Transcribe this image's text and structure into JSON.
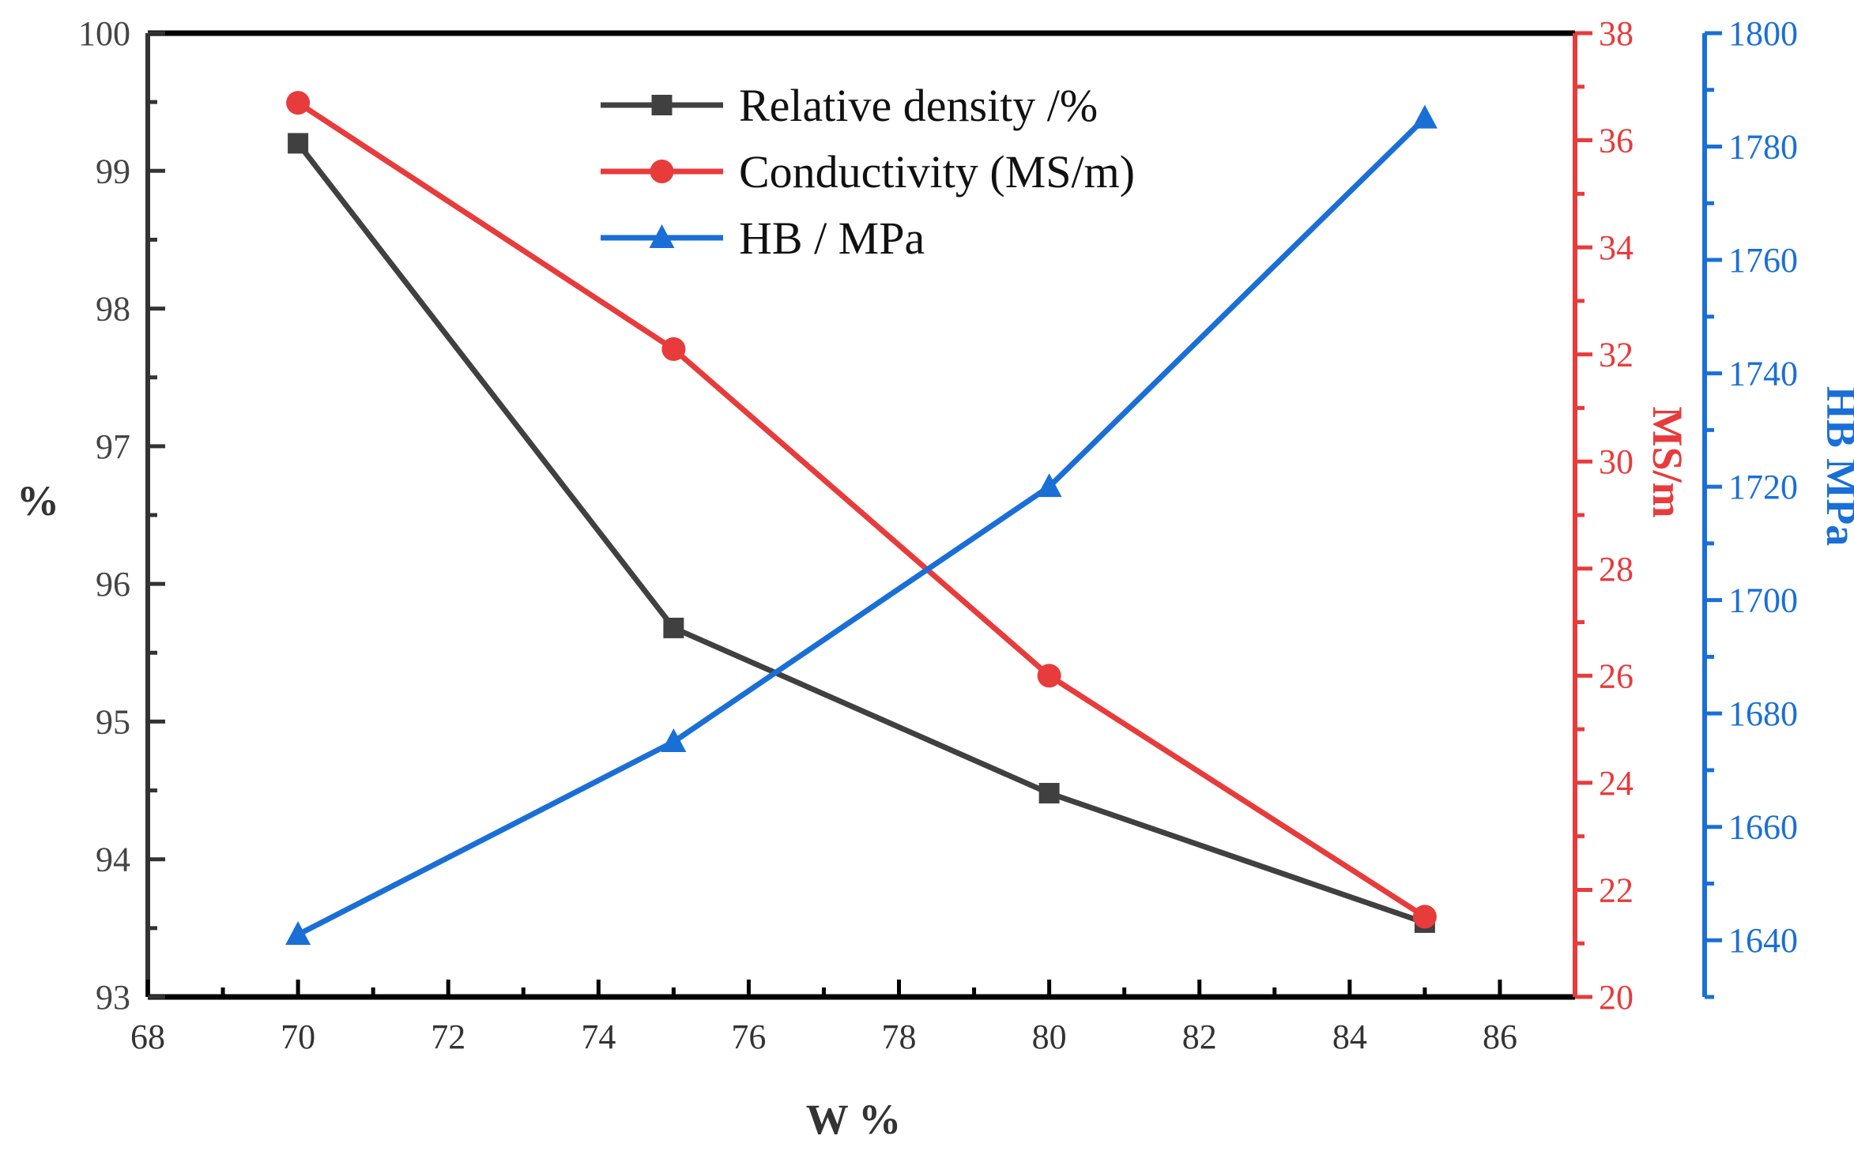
{
  "chart_data": {
    "type": "line",
    "x": [
      70,
      75,
      80,
      85
    ],
    "xlabel": "W %",
    "xlim": [
      68,
      87
    ],
    "xticks": [
      68,
      70,
      72,
      74,
      76,
      78,
      80,
      82,
      84,
      86
    ],
    "series": [
      {
        "name": "Relative density /%",
        "axis": "left",
        "color": "#404040",
        "marker": "square",
        "values": [
          99.2,
          95.68,
          94.48,
          93.54
        ]
      },
      {
        "name": "Conductivity (MS/m)",
        "axis": "right",
        "color": "#e83b3b",
        "marker": "circle",
        "values": [
          36.7,
          32.1,
          26.0,
          21.5
        ]
      },
      {
        "name": "HB / MPa",
        "axis": "right2",
        "color": "#1a6fd6",
        "marker": "triangle",
        "values": [
          1641,
          1675,
          1720,
          1785
        ]
      }
    ],
    "axes": {
      "left": {
        "label": "%",
        "lim": [
          93,
          100
        ],
        "ticks": [
          93,
          94,
          95,
          96,
          97,
          98,
          99,
          100
        ],
        "color": "#333333"
      },
      "right": {
        "label": "MS/m",
        "lim": [
          20,
          38
        ],
        "ticks": [
          20,
          22,
          24,
          26,
          28,
          30,
          32,
          34,
          36,
          38
        ],
        "color": "#e83b3b"
      },
      "right2": {
        "label": "HB MPa",
        "lim": [
          1630,
          1800
        ],
        "ticks": [
          1640,
          1660,
          1680,
          1700,
          1720,
          1740,
          1760,
          1780,
          1800
        ],
        "color": "#1a6fd6"
      }
    },
    "legend": {
      "position": "top-center",
      "entries": [
        "Relative density /%",
        "Conductivity (MS/m)",
        "HB / MPa"
      ]
    }
  }
}
